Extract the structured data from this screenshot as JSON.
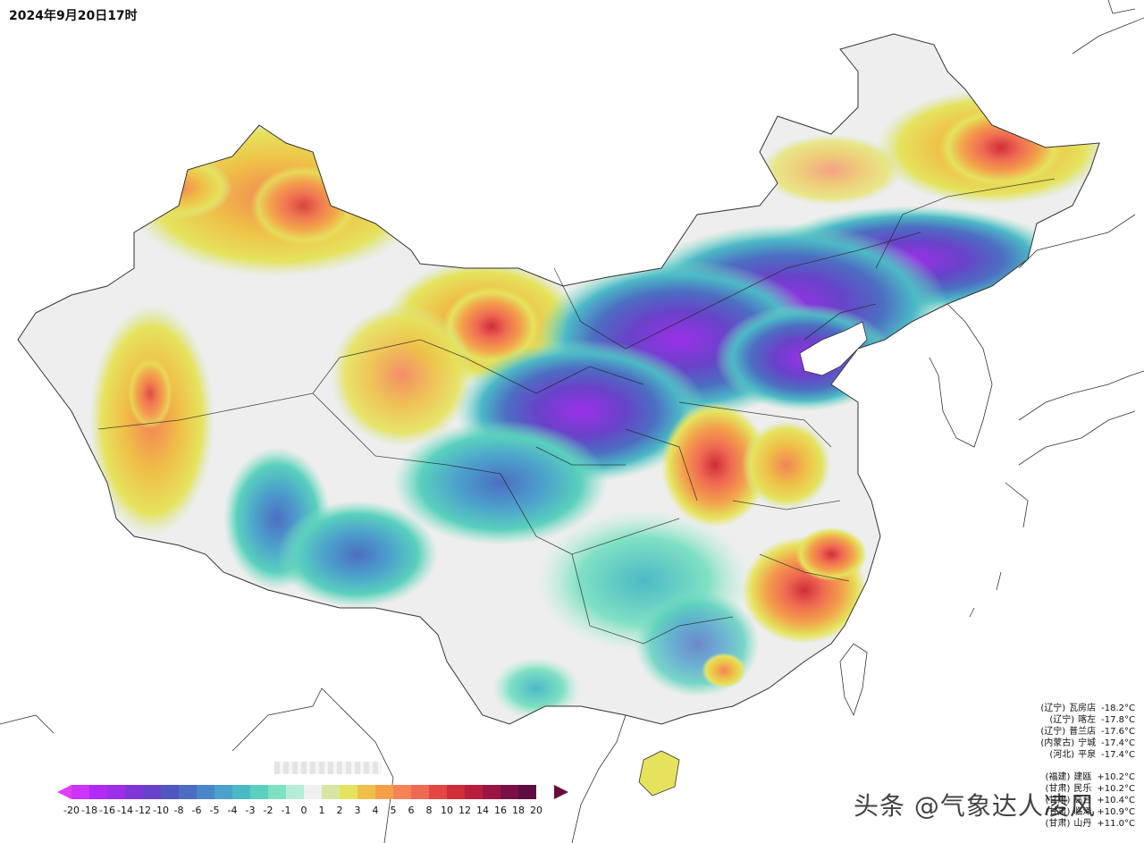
{
  "title": "2024年9月20日17时",
  "legend": {
    "colors": [
      "#cc33ff",
      "#b02cf5",
      "#9b30e8",
      "#7f36d8",
      "#6843c9",
      "#5257c0",
      "#4c6ec2",
      "#4b86c8",
      "#4ca0cc",
      "#4cb9c6",
      "#5ad0bd",
      "#7fe0c3",
      "#b5eed8",
      "#f0f0f0",
      "#d7e6a0",
      "#e5e35d",
      "#efc047",
      "#f3a04b",
      "#f48357",
      "#ef6a52",
      "#e24742",
      "#d02c3a",
      "#b81e3c",
      "#9a1543",
      "#7b1047",
      "#5e0d43"
    ],
    "ticks": [
      "-20",
      "-18",
      "-16",
      "-14",
      "-12",
      "-10",
      "-8",
      "-6",
      "-5",
      "-4",
      "-3",
      "-2",
      "-1",
      "0",
      "1",
      "2",
      "3",
      "4",
      "5",
      "6",
      "8",
      "10",
      "12",
      "14",
      "16",
      "18",
      "20"
    ]
  },
  "stations_low": [
    {
      "prov": "(辽宁)",
      "name": "瓦房店",
      "value": "-18.2°C"
    },
    {
      "prov": "(辽宁)",
      "name": "喀左",
      "value": "-17.8°C"
    },
    {
      "prov": "(辽宁)",
      "name": "普兰店",
      "value": "-17.6°C"
    },
    {
      "prov": "(内蒙古)",
      "name": "宁城",
      "value": "-17.4°C"
    },
    {
      "prov": "(河北)",
      "name": "平泉",
      "value": "-17.4°C"
    }
  ],
  "stations_high": [
    {
      "prov": "(福建)",
      "name": "建瓯",
      "value": "+10.2°C"
    },
    {
      "prov": "(甘肃)",
      "name": "民乐",
      "value": "+10.2°C"
    },
    {
      "prov": "(甘肃)",
      "name": "高台",
      "value": "+10.4°C"
    },
    {
      "prov": "(甘肃)",
      "name": "临泽",
      "value": "+10.9°C"
    },
    {
      "prov": "(甘肃)",
      "name": "山丹",
      "value": "+11.0°C"
    }
  ],
  "watermark": "头条 @气象达人凌风"
}
